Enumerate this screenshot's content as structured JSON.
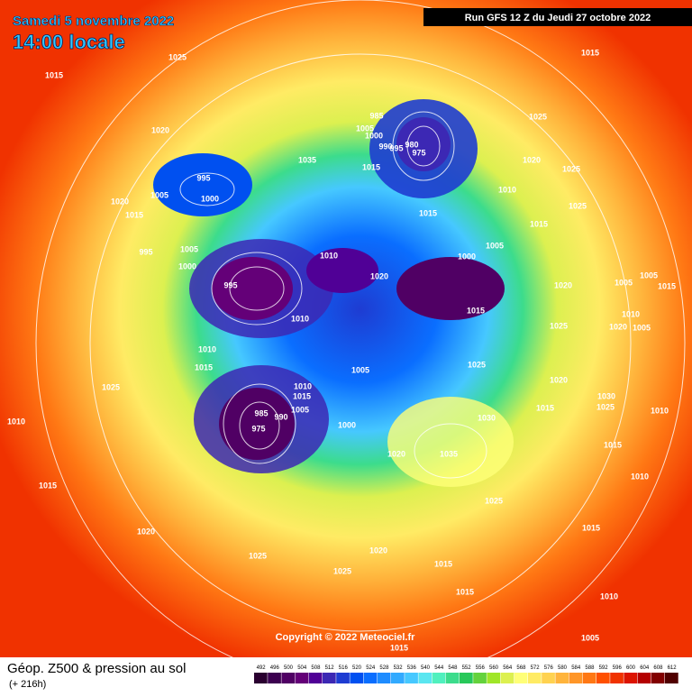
{
  "header": {
    "date": "Samedi 5 novembre 2022",
    "time": "14:00 locale",
    "run": "Run GFS 12 Z du Jeudi 27 octobre 2022"
  },
  "copyright": "Copyright © 2022 Meteociel.fr",
  "footer": {
    "title": "Géop. Z500 & pression au sol",
    "lead": "(+ 216h)"
  },
  "scale": {
    "values": [
      492,
      496,
      500,
      504,
      508,
      512,
      516,
      520,
      524,
      528,
      532,
      536,
      540,
      544,
      548,
      552,
      556,
      560,
      564,
      568,
      572,
      576,
      580,
      584,
      588,
      592,
      596,
      600,
      604,
      608,
      612
    ],
    "colors": [
      "#2a0030",
      "#3c0050",
      "#500064",
      "#640078",
      "#500096",
      "#3c28b4",
      "#1e3cd2",
      "#0050f0",
      "#0a6eff",
      "#1e8cff",
      "#32aaff",
      "#46c8ff",
      "#5ae6f0",
      "#50f0be",
      "#3cdc8c",
      "#28c85a",
      "#64d23c",
      "#a0e628",
      "#dcf050",
      "#ffff78",
      "#ffeb64",
      "#ffd250",
      "#ffb43c",
      "#ff9628",
      "#ff7814",
      "#ff5000",
      "#f03200",
      "#dc1400",
      "#b40000",
      "#820000",
      "#500000"
    ]
  },
  "isobar_labels": [
    1015,
    1025,
    1020,
    1015,
    985,
    1005,
    1000,
    990,
    995,
    980,
    975,
    1035,
    995,
    1000,
    1005,
    1020,
    1015,
    1015,
    1010,
    1025,
    1020,
    1025,
    1025,
    1015,
    1015,
    995,
    1005,
    1000,
    1010,
    1005,
    1000,
    1020,
    995,
    1020,
    1005,
    1005,
    1015,
    1010,
    1015,
    1010,
    1020,
    1005,
    1025,
    1010,
    1015,
    1025,
    1005,
    1020,
    1025,
    1010,
    1015,
    1005,
    985,
    990,
    975,
    1000,
    1030,
    1030,
    1025,
    1010,
    1015,
    1010,
    1035,
    1020,
    1015,
    1010,
    1015,
    1025,
    1020,
    1015,
    1025,
    1020,
    1025,
    1015,
    1015,
    1010,
    1005,
    1015
  ]
}
